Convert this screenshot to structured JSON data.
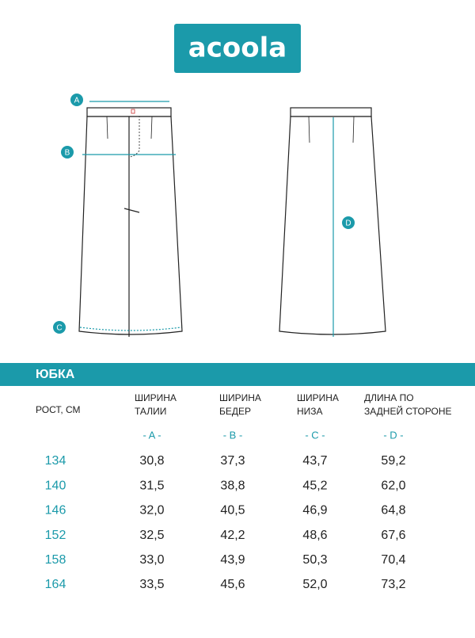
{
  "logo": "acoola",
  "diagram": {
    "markers": [
      "A",
      "B",
      "C",
      "D"
    ]
  },
  "section_title": "ЮБКА",
  "table": {
    "headers": [
      [
        "РОСТ, СМ"
      ],
      [
        "ШИРИНА",
        "ТАЛИИ"
      ],
      [
        "ШИРИНА",
        "БЕДЕР"
      ],
      [
        "ШИРИНА",
        "НИЗА"
      ],
      [
        "ДЛИНА ПО",
        "ЗАДНЕЙ СТОРОНЕ"
      ]
    ],
    "codes": [
      "- A -",
      "- B -",
      "- C -",
      "- D -"
    ],
    "rows": [
      [
        "134",
        "30,8",
        "37,3",
        "43,7",
        "59,2"
      ],
      [
        "140",
        "31,5",
        "38,8",
        "45,2",
        "62,0"
      ],
      [
        "146",
        "32,0",
        "40,5",
        "46,9",
        "64,8"
      ],
      [
        "152",
        "32,5",
        "42,2",
        "48,6",
        "67,6"
      ],
      [
        "158",
        "33,0",
        "43,9",
        "50,3",
        "70,4"
      ],
      [
        "164",
        "33,5",
        "45,6",
        "52,0",
        "73,2"
      ]
    ]
  }
}
